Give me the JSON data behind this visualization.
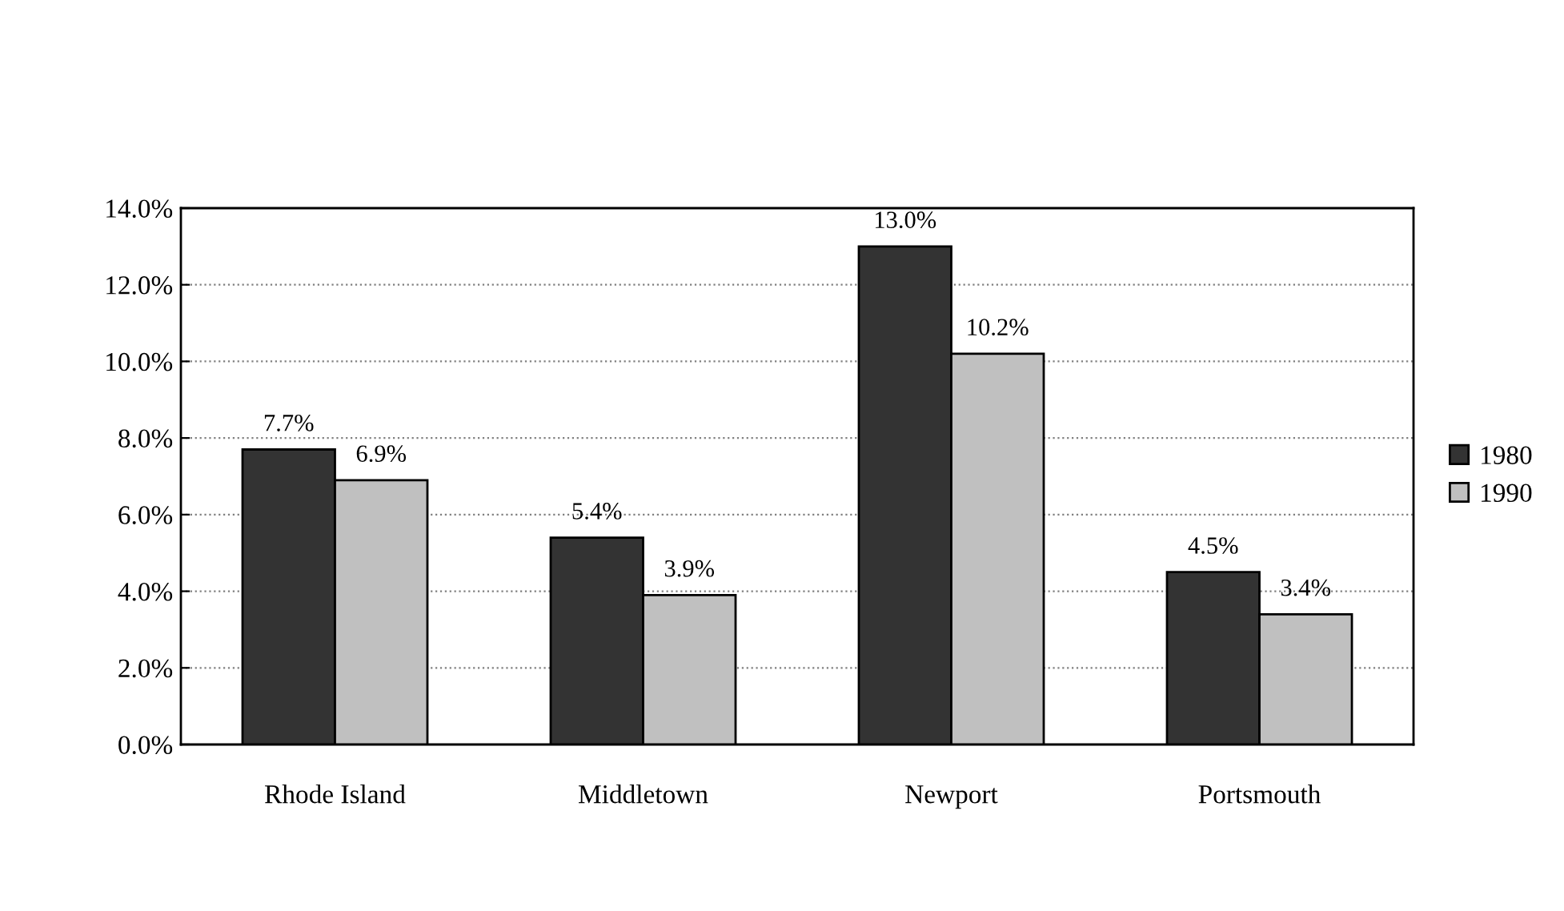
{
  "chart_data": {
    "type": "bar",
    "categories": [
      "Rhode Island",
      "Middletown",
      "Newport",
      "Portsmouth"
    ],
    "series": [
      {
        "name": "1980",
        "color": "#333333",
        "values": [
          7.7,
          5.4,
          13.0,
          4.5
        ],
        "value_labels": [
          "7.7%",
          "5.4%",
          "13.0%",
          "4.5%"
        ]
      },
      {
        "name": "1990",
        "color": "#c0c0c0",
        "values": [
          6.9,
          3.9,
          10.2,
          3.4
        ],
        "value_labels": [
          "6.9%",
          "3.9%",
          "10.2%",
          "3.4%"
        ]
      }
    ],
    "ylim": [
      0,
      14
    ],
    "yticks": [
      {
        "value": 0,
        "label": "0.0%"
      },
      {
        "value": 2,
        "label": "2.0%"
      },
      {
        "value": 4,
        "label": "4.0%"
      },
      {
        "value": 6,
        "label": "6.0%"
      },
      {
        "value": 8,
        "label": "8.0%"
      },
      {
        "value": 10,
        "label": "10.0%"
      },
      {
        "value": 12,
        "label": "12.0%"
      },
      {
        "value": 14,
        "label": "14.0%"
      }
    ],
    "grid": "y",
    "legend": "right"
  }
}
